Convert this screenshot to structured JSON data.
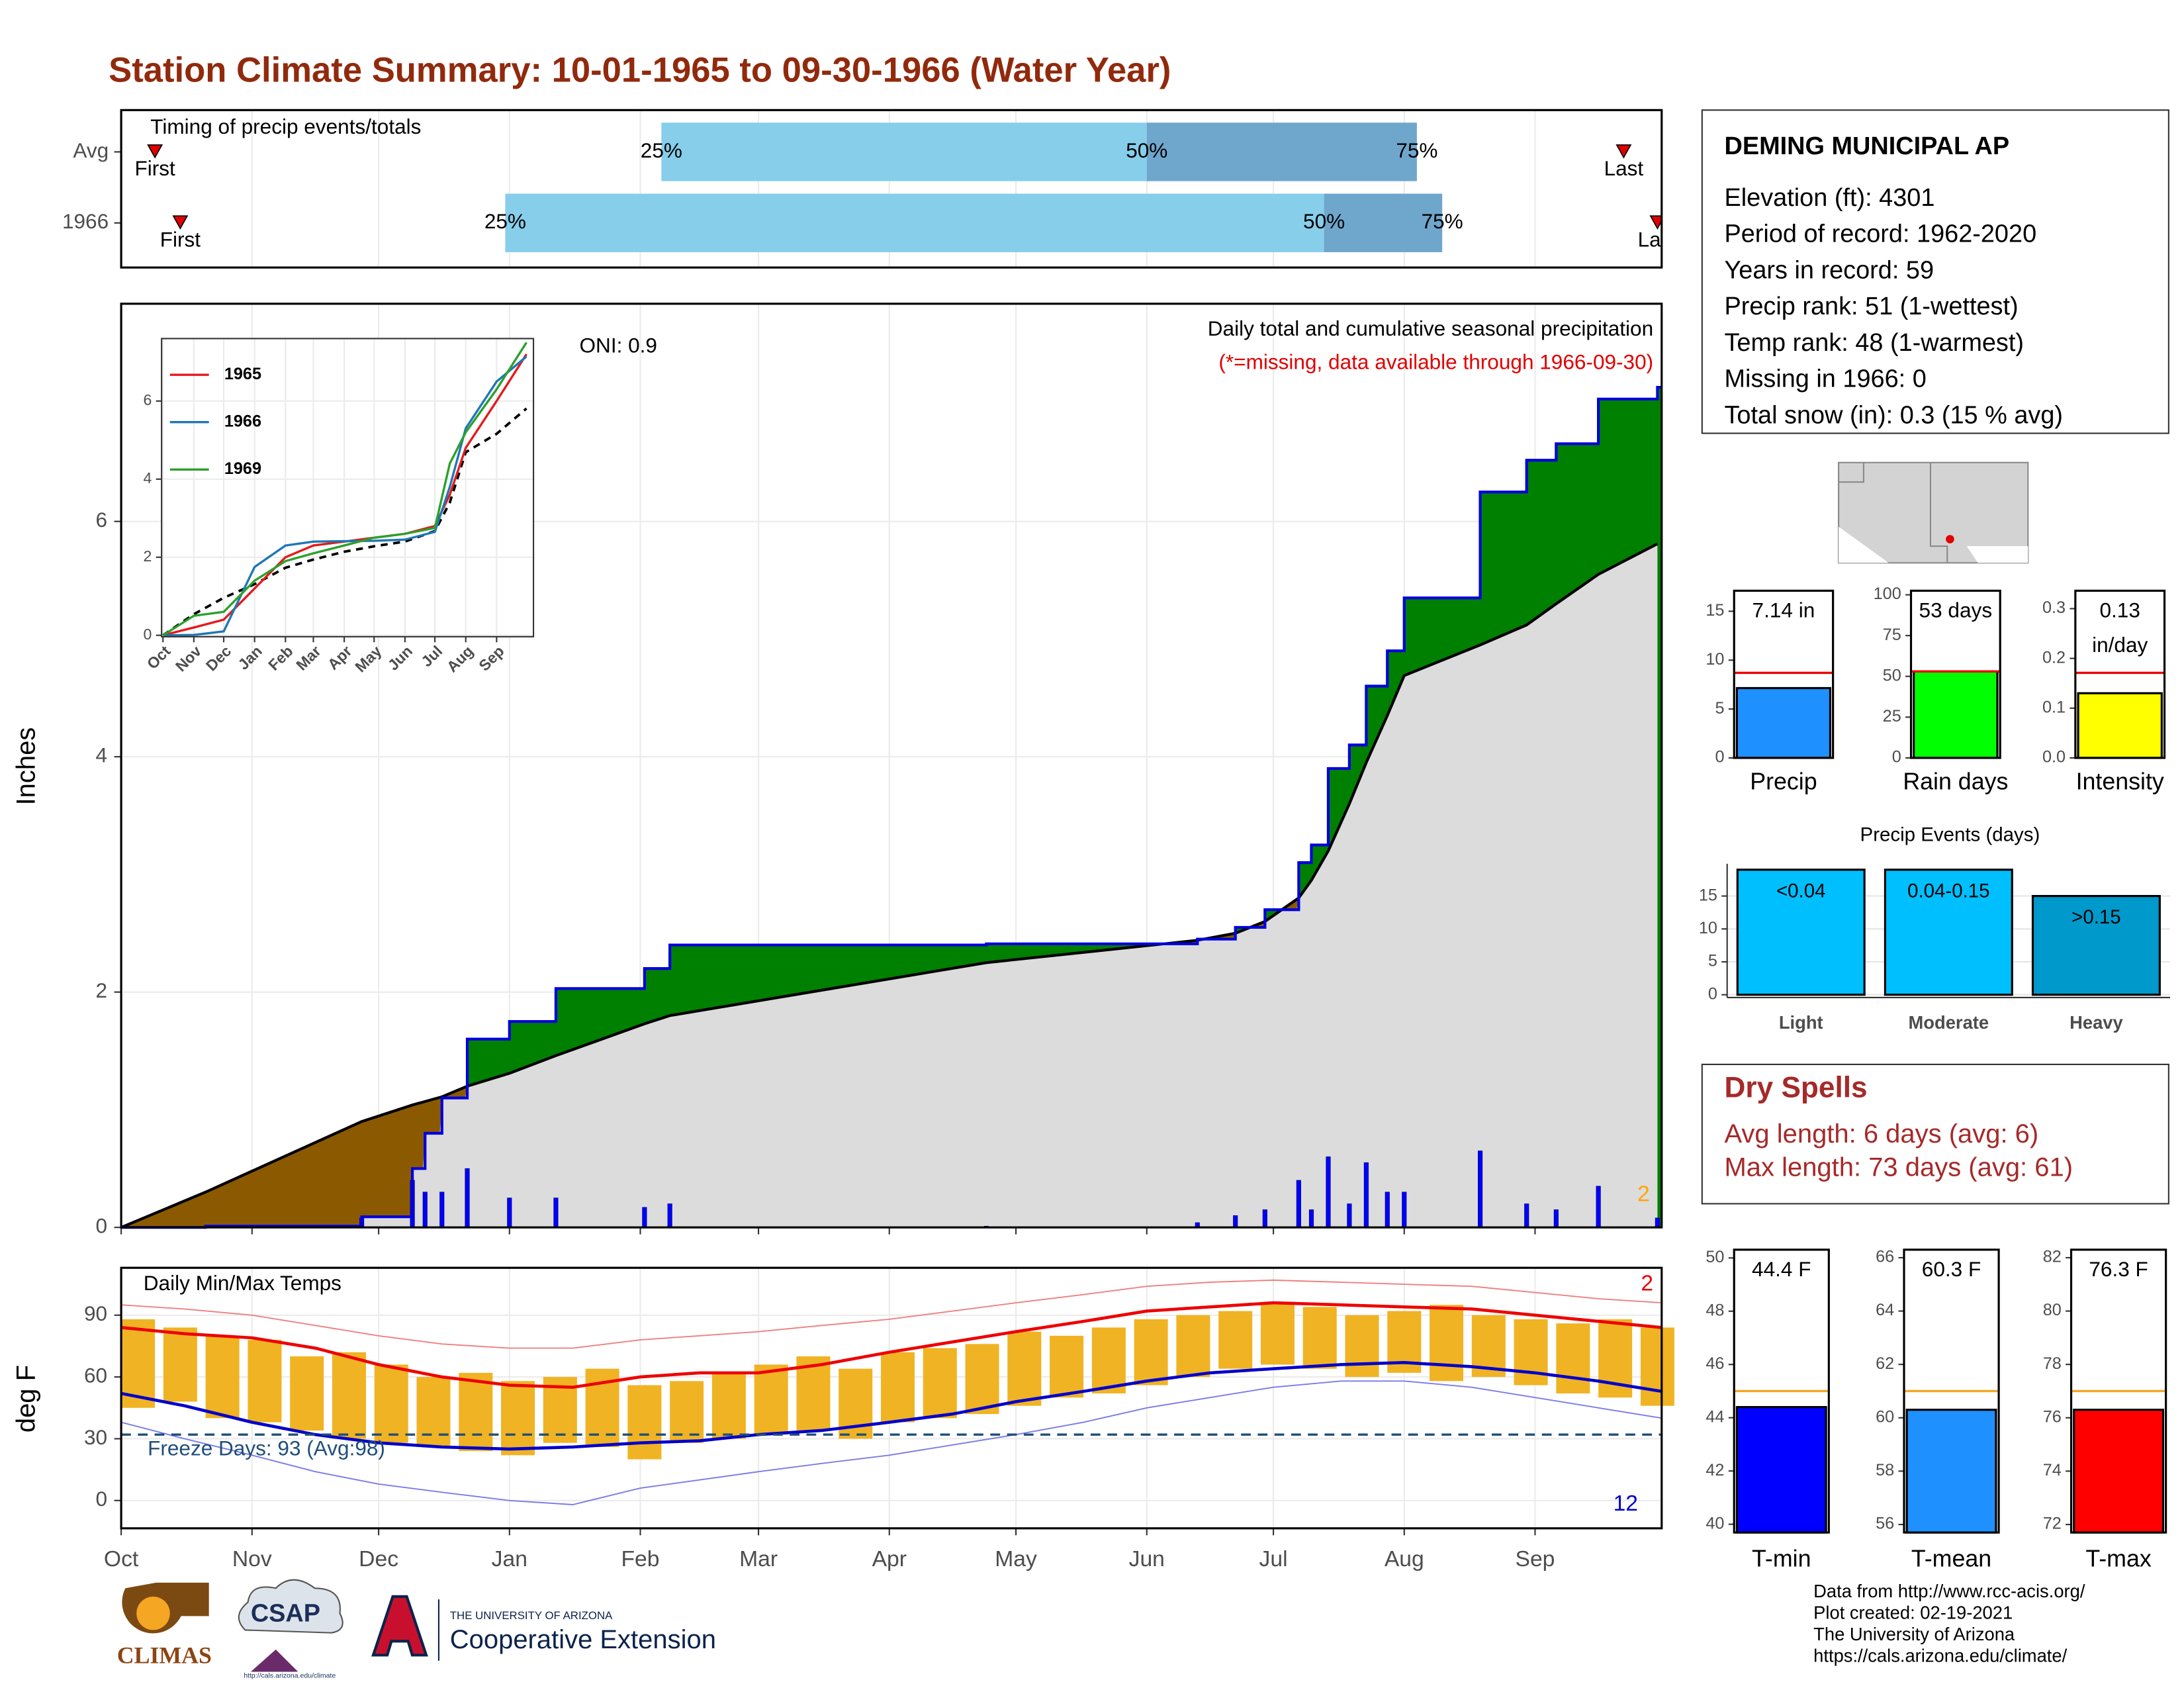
{
  "title": "Station Climate Summary: 10-01-1965 to 09-30-1966 (Water Year)",
  "chart_data": [
    {
      "type": "timing",
      "title": "Timing of precip events/totals",
      "rows": [
        "Avg",
        "1966"
      ],
      "xlim": [
        0,
        365
      ],
      "series": [
        {
          "name": "First",
          "values": [
            8,
            14
          ]
        },
        {
          "name": "25%",
          "values": [
            128,
            91
          ]
        },
        {
          "name": "50%",
          "values": [
            243,
            285
          ]
        },
        {
          "name": "75%",
          "values": [
            307,
            313
          ]
        },
        {
          "name": "Last",
          "values": [
            356,
            364
          ]
        }
      ],
      "colors": [
        "#87ceeb",
        "#6fa6cc"
      ],
      "marker_color": "#e00000"
    },
    {
      "type": "cumulative_precip",
      "ylabel": "Inches",
      "annotation": "Daily total and cumulative seasonal precipitation",
      "note": "(*=missing, data available through 1966-09-30)",
      "oni": "ONI: 0.9",
      "corner_label": "2",
      "xlim": [
        0,
        365
      ],
      "ylim": [
        0,
        7.85
      ],
      "yticks": [
        0,
        2,
        4,
        6
      ],
      "x": [
        0,
        20,
        57,
        69,
        72,
        76,
        82,
        92,
        103,
        124,
        130,
        205,
        255,
        264,
        271,
        279,
        282,
        286,
        291,
        295,
        300,
        304,
        322,
        333,
        340,
        350,
        364
      ],
      "observed": [
        0,
        0.01,
        0.09,
        0.5,
        0.8,
        1.1,
        1.6,
        1.75,
        2.03,
        2.2,
        2.4,
        2.41,
        2.45,
        2.55,
        2.7,
        3.1,
        3.25,
        3.9,
        4.1,
        4.6,
        4.9,
        5.35,
        6.25,
        6.52,
        6.66,
        7.04,
        7.14
      ],
      "average": [
        0,
        0.3,
        0.9,
        1.04,
        1.07,
        1.11,
        1.2,
        1.31,
        1.46,
        1.73,
        1.8,
        2.25,
        2.44,
        2.5,
        2.6,
        2.8,
        2.95,
        3.2,
        3.6,
        3.95,
        4.35,
        4.69,
        4.95,
        5.12,
        5.3,
        5.55,
        5.81
      ],
      "daily_x": [
        57,
        69,
        72,
        76,
        82,
        92,
        103,
        124,
        130,
        205,
        255,
        264,
        271,
        279,
        282,
        286,
        291,
        295,
        300,
        304,
        322,
        333,
        340,
        350,
        364
      ],
      "daily": [
        0.08,
        0.4,
        0.3,
        0.3,
        0.5,
        0.25,
        0.25,
        0.17,
        0.2,
        0.01,
        0.04,
        0.1,
        0.15,
        0.4,
        0.15,
        0.6,
        0.2,
        0.55,
        0.3,
        0.3,
        0.65,
        0.2,
        0.15,
        0.35,
        0.08
      ],
      "colors": {
        "observed": "#0000dd",
        "average": "#000000",
        "above": "#008000",
        "below": "#8b5a00",
        "normal": "#dcdcdc",
        "daily": "#0000ff",
        "corner": "#ffa500"
      }
    },
    {
      "type": "line",
      "xlim": [
        0,
        372
      ],
      "ylim": [
        0,
        7.6
      ],
      "yticks": [
        0,
        2,
        4,
        6
      ],
      "xticks": [
        {
          "value": 0,
          "label": "Oct"
        },
        {
          "value": 31,
          "label": "Nov"
        },
        {
          "value": 61,
          "label": "Dec"
        },
        {
          "value": 92,
          "label": "Jan"
        },
        {
          "value": 123,
          "label": "Feb"
        },
        {
          "value": 151,
          "label": "Mar"
        },
        {
          "value": 182,
          "label": "Apr"
        },
        {
          "value": 212,
          "label": "May"
        },
        {
          "value": 243,
          "label": "Jun"
        },
        {
          "value": 273,
          "label": "Jul"
        },
        {
          "value": 304,
          "label": "Aug"
        },
        {
          "value": 335,
          "label": "Sep"
        }
      ],
      "x": [
        0,
        31,
        61,
        92,
        123,
        151,
        182,
        212,
        243,
        273,
        288,
        304,
        335,
        365
      ],
      "series": [
        {
          "name": "1965",
          "color": "#e41a1c",
          "values": [
            0,
            0.2,
            0.4,
            1.2,
            2.0,
            2.3,
            2.4,
            2.5,
            2.6,
            2.8,
            3.6,
            4.8,
            6.0,
            7.2
          ]
        },
        {
          "name": "1966",
          "color": "#1f77b4",
          "values": [
            0,
            0.01,
            0.1,
            1.75,
            2.3,
            2.4,
            2.41,
            2.42,
            2.45,
            2.65,
            3.8,
            5.3,
            6.5,
            7.14
          ]
        },
        {
          "name": "1969",
          "color": "#2ca02c",
          "values": [
            0,
            0.5,
            0.6,
            1.4,
            1.9,
            2.1,
            2.3,
            2.5,
            2.6,
            2.75,
            4.4,
            5.2,
            6.3,
            7.5
          ]
        }
      ],
      "average": [
        0,
        0.54,
        0.96,
        1.31,
        1.73,
        1.94,
        2.14,
        2.28,
        2.4,
        2.67,
        3.4,
        4.69,
        5.16,
        5.81
      ]
    },
    {
      "type": "temps",
      "title": "Daily Min/Max Temps",
      "ylabel": "deg F",
      "xlim": [
        0,
        365
      ],
      "ylim": [
        -13.5,
        113
      ],
      "yticks": [
        0,
        30,
        60,
        90
      ],
      "xticks": [
        {
          "value": 0,
          "label": "Oct"
        },
        {
          "value": 31,
          "label": "Nov"
        },
        {
          "value": 61,
          "label": "Dec"
        },
        {
          "value": 92,
          "label": "Jan"
        },
        {
          "value": 123,
          "label": "Feb"
        },
        {
          "value": 151,
          "label": "Mar"
        },
        {
          "value": 182,
          "label": "Apr"
        },
        {
          "value": 212,
          "label": "May"
        },
        {
          "value": 243,
          "label": "Jun"
        },
        {
          "value": 273,
          "label": "Jul"
        },
        {
          "value": 304,
          "label": "Aug"
        },
        {
          "value": 335,
          "label": "Sep"
        }
      ],
      "freeze": 32,
      "freeze_label": "Freeze Days: 93 (Avg:98)",
      "max_count": "2",
      "min_count": "12",
      "x": [
        0,
        15,
        31,
        46,
        61,
        76,
        92,
        107,
        123,
        137,
        151,
        166,
        182,
        197,
        212,
        228,
        243,
        258,
        273,
        289,
        304,
        320,
        335,
        350,
        365
      ],
      "avg_max": [
        84,
        81,
        79,
        74,
        66,
        60,
        56,
        55,
        60,
        62,
        62,
        66,
        72,
        77,
        82,
        87,
        92,
        94,
        96,
        95,
        94,
        93,
        90,
        87,
        84
      ],
      "avg_min": [
        52,
        46,
        38,
        32,
        28,
        26,
        25,
        26,
        28,
        29,
        32,
        34,
        38,
        42,
        48,
        53,
        58,
        62,
        64,
        66,
        67,
        65,
        62,
        58,
        53
      ],
      "record_max": [
        95,
        93,
        90,
        85,
        80,
        76,
        74,
        74,
        78,
        80,
        82,
        85,
        88,
        92,
        96,
        100,
        104,
        106,
        107,
        106,
        105,
        104,
        101,
        98,
        96
      ],
      "record_min": [
        38,
        30,
        22,
        14,
        8,
        4,
        0,
        -2,
        6,
        10,
        14,
        18,
        22,
        27,
        32,
        38,
        45,
        50,
        55,
        58,
        58,
        55,
        50,
        45,
        40
      ],
      "bar_x": [
        0,
        10,
        20,
        30,
        40,
        50,
        60,
        70,
        80,
        90,
        100,
        110,
        120,
        130,
        140,
        150,
        160,
        170,
        180,
        190,
        200,
        210,
        220,
        230,
        240,
        250,
        260,
        270,
        280,
        290,
        300,
        310,
        320,
        330,
        340,
        350,
        360
      ],
      "daily_max": [
        88,
        84,
        80,
        78,
        70,
        72,
        66,
        60,
        62,
        58,
        60,
        64,
        56,
        58,
        62,
        66,
        70,
        64,
        72,
        74,
        76,
        82,
        80,
        84,
        88,
        90,
        92,
        96,
        94,
        90,
        92,
        95,
        90,
        88,
        86,
        88,
        84
      ],
      "daily_min": [
        45,
        48,
        40,
        38,
        34,
        30,
        28,
        26,
        24,
        22,
        28,
        26,
        20,
        28,
        30,
        32,
        34,
        30,
        38,
        40,
        42,
        46,
        50,
        52,
        56,
        60,
        64,
        66,
        64,
        60,
        62,
        58,
        60,
        56,
        52,
        50,
        46
      ],
      "colors": {
        "bars": "#f0b323",
        "avg_max": "#ee0000",
        "avg_min": "#0000cc",
        "record_max": "#f08080",
        "record_min": "#7b7bea",
        "freeze": "#1f4e79"
      }
    },
    {
      "type": "bar_avg",
      "label": "Precip",
      "values": [
        7.14
      ],
      "value_labels": [
        "7.14 in"
      ],
      "avg": 8.7,
      "color": "#1e90ff",
      "avg_color": "#ee0000",
      "ylim": [
        0,
        17.1
      ],
      "yticks": [
        0,
        5,
        10,
        15
      ]
    },
    {
      "type": "bar_avg",
      "label": "Rain days",
      "values": [
        53
      ],
      "value_labels": [
        "53 days"
      ],
      "avg": 53,
      "color": "#00ff00",
      "avg_color": "#ee0000",
      "ylim": [
        0,
        102.5
      ],
      "yticks": [
        0,
        25,
        50,
        75,
        100
      ]
    },
    {
      "type": "bar_avg",
      "label": "Intensity",
      "values": [
        0.13
      ],
      "value_labels": [
        "0.13 in/day"
      ],
      "avg": 0.171,
      "color": "#ffff00",
      "avg_color": "#ee0000",
      "ylim": [
        0,
        0.336
      ],
      "yticks": [
        {
          "value": 0,
          "label": "0.0"
        },
        0.1,
        0.2,
        0.3
      ]
    },
    {
      "type": "bar",
      "title": "Precip Events (days)",
      "categories": [
        "Light",
        "Moderate",
        "Heavy"
      ],
      "values": [
        19,
        19,
        15
      ],
      "value_labels": [
        "<0.04",
        "0.04-0.15",
        ">0.15"
      ],
      "colors": [
        "#00bfff",
        "#00bfff",
        "#0099cc"
      ],
      "ylim": [
        0,
        19.9
      ],
      "yticks": [
        0,
        5,
        10,
        15
      ],
      "grid": true
    },
    {
      "type": "bar_avg",
      "label": "T-min",
      "values": [
        44.4
      ],
      "value_labels": [
        "44.4 F"
      ],
      "avg": 45.0,
      "color": "#0000ff",
      "avg_color": "#f5a623",
      "ylim": [
        39.69,
        50.31
      ],
      "yticks": [
        40,
        42,
        44,
        46,
        48,
        50
      ]
    },
    {
      "type": "bar_avg",
      "label": "T-mean",
      "values": [
        60.3
      ],
      "value_labels": [
        "60.3 F"
      ],
      "avg": 61.0,
      "color": "#1e90ff",
      "avg_color": "#f5a623",
      "ylim": [
        55.7,
        66.3
      ],
      "yticks": [
        56,
        58,
        60,
        62,
        64,
        66
      ]
    },
    {
      "type": "bar_avg",
      "label": "T-max",
      "values": [
        76.3
      ],
      "value_labels": [
        "76.3 F"
      ],
      "avg": 77.0,
      "color": "#ff0000",
      "avg_color": "#f5a623",
      "ylim": [
        71.7,
        82.3
      ],
      "yticks": [
        72,
        74,
        76,
        78,
        80,
        82
      ]
    }
  ],
  "station": {
    "name": "DEMING MUNICIPAL AP",
    "lines": [
      "Elevation (ft): 4301",
      "Period of record: 1962-2020",
      "Years in record: 59",
      "Precip rank: 51 (1-wettest)",
      "Temp rank: 48 (1-warmest)",
      "Missing in 1966: 0",
      "Total snow (in): 0.3 (15 % avg)"
    ]
  },
  "dry_spells": {
    "title": "Dry Spells",
    "lines": [
      "Avg length: 6 days (avg: 6)",
      "Max length: 73 days (avg: 61)"
    ]
  },
  "footer": [
    "Data from http://www.rcc-acis.org/",
    "Plot created: 02-19-2021",
    "The University of Arizona",
    "https://cals.arizona.edu/climate/"
  ],
  "logos": {
    "climas": "CLIMAS",
    "csap": "CSAP",
    "csap_url": "http://cals.arizona.edu/climate",
    "ua": "THE UNIVERSITY OF ARIZONA",
    "coop": "Cooperative Extension"
  }
}
